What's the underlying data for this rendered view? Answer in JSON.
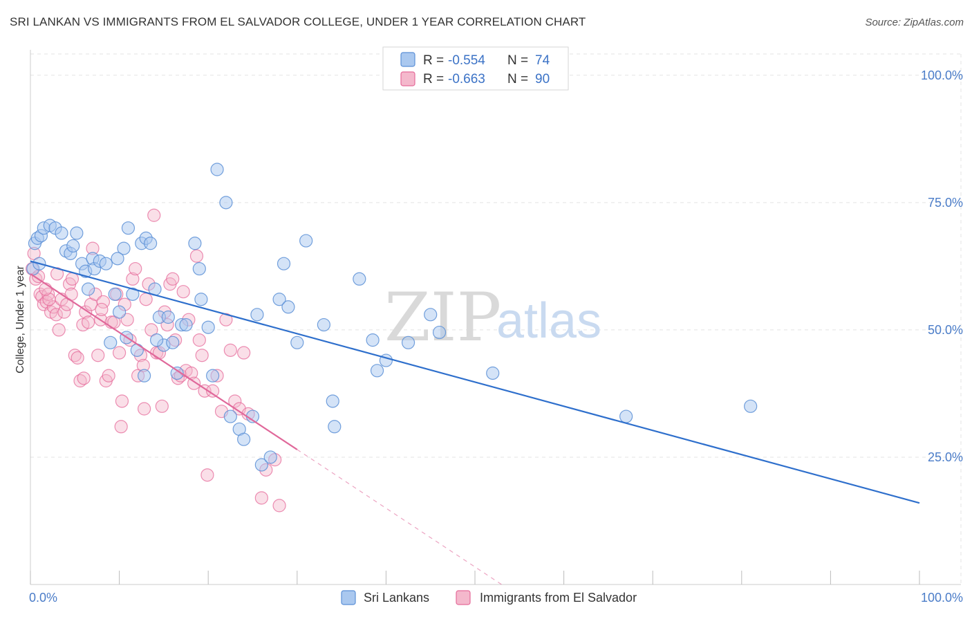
{
  "title": "SRI LANKAN VS IMMIGRANTS FROM EL SALVADOR COLLEGE, UNDER 1 YEAR CORRELATION CHART",
  "source": "Source: ZipAtlas.com",
  "watermark": {
    "zip": "ZIP",
    "atlas": "atlas"
  },
  "colors": {
    "blue": "#5b8fd6",
    "blue_fill": "#aac8ef",
    "pink": "#e56a99",
    "pink_fill": "#f4b8cc",
    "blue_line": "#2e6fcc",
    "pink_line": "#e0689a",
    "tick": "#4a7cc8",
    "grid": "#e3e3e3"
  },
  "legend": {
    "r_label": "R =",
    "n_label": "N =",
    "entries": [
      {
        "r": "-0.554",
        "n": "74"
      },
      {
        "r": "-0.663",
        "n": "90"
      }
    ]
  },
  "chart_data": {
    "type": "scatter",
    "title": "SRI LANKAN VS IMMIGRANTS FROM EL SALVADOR COLLEGE, UNDER 1 YEAR CORRELATION CHART",
    "xlabel": "",
    "ylabel": "College, Under 1 year",
    "xlim": [
      0,
      100
    ],
    "ylim": [
      0,
      105
    ],
    "x_tick_labels": [
      "0.0%",
      "100.0%"
    ],
    "y_ticks": [
      25,
      50,
      75,
      100
    ],
    "y_tick_labels": [
      "25.0%",
      "50.0%",
      "75.0%",
      "100.0%"
    ],
    "grid": true,
    "legend_position": "top-center",
    "series": [
      {
        "name": "Sri Lankans",
        "color": "#5b8fd6",
        "r": -0.554,
        "n": 74,
        "trend": {
          "x0": 0,
          "y0": 63.5,
          "x1": 100,
          "y1": 16.0
        },
        "points": [
          [
            0.3,
            62
          ],
          [
            0.5,
            67
          ],
          [
            0.8,
            68
          ],
          [
            1.2,
            68.5
          ],
          [
            1.5,
            70
          ],
          [
            2.2,
            70.5
          ],
          [
            2.8,
            70
          ],
          [
            3.5,
            69
          ],
          [
            4.0,
            65.5
          ],
          [
            4.5,
            65
          ],
          [
            4.8,
            66.5
          ],
          [
            5.2,
            69
          ],
          [
            5.8,
            63
          ],
          [
            6.2,
            61.5
          ],
          [
            6.5,
            58
          ],
          [
            7.0,
            64
          ],
          [
            7.2,
            62
          ],
          [
            7.8,
            63.5
          ],
          [
            8.5,
            63
          ],
          [
            9.0,
            47.5
          ],
          [
            9.5,
            57
          ],
          [
            10.0,
            53.5
          ],
          [
            10.5,
            66
          ],
          [
            10.8,
            48.5
          ],
          [
            11.0,
            70
          ],
          [
            11.5,
            57
          ],
          [
            12.0,
            46
          ],
          [
            12.5,
            67
          ],
          [
            12.8,
            41
          ],
          [
            13.0,
            68
          ],
          [
            13.5,
            67
          ],
          [
            14.0,
            58
          ],
          [
            14.5,
            52.5
          ],
          [
            15.0,
            47
          ],
          [
            15.5,
            52.5
          ],
          [
            16.0,
            47.5
          ],
          [
            16.5,
            41.5
          ],
          [
            17.0,
            51
          ],
          [
            17.5,
            51
          ],
          [
            18.5,
            67
          ],
          [
            19.0,
            62
          ],
          [
            19.2,
            56
          ],
          [
            20.0,
            50.5
          ],
          [
            20.5,
            41
          ],
          [
            21.0,
            81.5
          ],
          [
            22.0,
            75
          ],
          [
            22.5,
            33
          ],
          [
            23.5,
            30.5
          ],
          [
            24.0,
            28.5
          ],
          [
            25.0,
            33
          ],
          [
            25.5,
            53
          ],
          [
            26.0,
            23.5
          ],
          [
            27.0,
            25
          ],
          [
            28.0,
            56
          ],
          [
            28.5,
            63
          ],
          [
            29.0,
            54.5
          ],
          [
            30.0,
            47.5
          ],
          [
            31.0,
            67.5
          ],
          [
            33.0,
            51
          ],
          [
            34.0,
            36
          ],
          [
            34.2,
            31
          ],
          [
            37.0,
            60
          ],
          [
            38.5,
            48
          ],
          [
            39.0,
            42
          ],
          [
            40.0,
            44
          ],
          [
            42.5,
            47.5
          ],
          [
            45.0,
            53
          ],
          [
            46.0,
            49.5
          ],
          [
            52.0,
            41.5
          ],
          [
            67.0,
            33
          ],
          [
            81.0,
            35
          ],
          [
            14.2,
            48
          ],
          [
            9.8,
            64
          ],
          [
            1.0,
            63
          ]
        ]
      },
      {
        "name": "Immigrants from El Salvador",
        "color": "#e56a99",
        "r": -0.663,
        "n": 90,
        "trend": {
          "x0": 0,
          "y0": 61.0,
          "x1": 30.0,
          "y1": 26.5
        },
        "trend_extension": {
          "x0": 30.0,
          "y0": 26.5,
          "x1": 53.0,
          "y1": 0.0
        },
        "points": [
          [
            0.2,
            62
          ],
          [
            0.4,
            65
          ],
          [
            0.6,
            60
          ],
          [
            0.9,
            60.5
          ],
          [
            1.1,
            57
          ],
          [
            1.3,
            56.5
          ],
          [
            1.5,
            55
          ],
          [
            1.8,
            55.5
          ],
          [
            2.0,
            57
          ],
          [
            2.3,
            53.5
          ],
          [
            2.6,
            54.5
          ],
          [
            2.9,
            53
          ],
          [
            3.2,
            50
          ],
          [
            3.5,
            56
          ],
          [
            3.8,
            53.5
          ],
          [
            4.1,
            55
          ],
          [
            4.4,
            59
          ],
          [
            4.7,
            60
          ],
          [
            5.0,
            45
          ],
          [
            5.3,
            44.5
          ],
          [
            5.6,
            40
          ],
          [
            5.9,
            51
          ],
          [
            6.2,
            53.5
          ],
          [
            6.5,
            51.5
          ],
          [
            6.8,
            55
          ],
          [
            7.0,
            66
          ],
          [
            7.3,
            57
          ],
          [
            7.6,
            45
          ],
          [
            7.9,
            52
          ],
          [
            8.2,
            55.5
          ],
          [
            8.5,
            40
          ],
          [
            8.8,
            41
          ],
          [
            9.1,
            51.5
          ],
          [
            9.4,
            51.5
          ],
          [
            9.7,
            57
          ],
          [
            10.0,
            45.5
          ],
          [
            10.3,
            36
          ],
          [
            10.6,
            55
          ],
          [
            10.9,
            52
          ],
          [
            11.2,
            48
          ],
          [
            11.5,
            60
          ],
          [
            11.8,
            62
          ],
          [
            12.1,
            41
          ],
          [
            12.4,
            45
          ],
          [
            12.7,
            43
          ],
          [
            13.0,
            56
          ],
          [
            13.3,
            59
          ],
          [
            13.6,
            50
          ],
          [
            13.9,
            72.5
          ],
          [
            14.2,
            45.5
          ],
          [
            14.5,
            45.5
          ],
          [
            14.8,
            35
          ],
          [
            15.1,
            53.5
          ],
          [
            15.4,
            51
          ],
          [
            15.7,
            59
          ],
          [
            16.0,
            60
          ],
          [
            16.3,
            48
          ],
          [
            16.6,
            40.5
          ],
          [
            16.9,
            41
          ],
          [
            17.2,
            57.5
          ],
          [
            17.5,
            42
          ],
          [
            17.8,
            52
          ],
          [
            18.1,
            41.5
          ],
          [
            18.4,
            39.5
          ],
          [
            18.7,
            64.5
          ],
          [
            19.0,
            48
          ],
          [
            19.3,
            45
          ],
          [
            19.6,
            38
          ],
          [
            19.9,
            21.5
          ],
          [
            20.5,
            38
          ],
          [
            21.0,
            41
          ],
          [
            21.5,
            34
          ],
          [
            22.0,
            52
          ],
          [
            22.5,
            46
          ],
          [
            23.0,
            36
          ],
          [
            23.5,
            34.5
          ],
          [
            24.0,
            45.5
          ],
          [
            24.5,
            33.5
          ],
          [
            26.0,
            17
          ],
          [
            26.5,
            22.5
          ],
          [
            27.5,
            24.5
          ],
          [
            28.0,
            15.5
          ],
          [
            10.2,
            31
          ],
          [
            12.8,
            34.5
          ],
          [
            3.0,
            61
          ],
          [
            4.6,
            57
          ],
          [
            2.1,
            56
          ],
          [
            6.0,
            40.5
          ],
          [
            8.0,
            54
          ],
          [
            1.7,
            58
          ]
        ]
      }
    ]
  },
  "bottom_legend": [
    "Sri Lankans",
    "Immigrants from El Salvador"
  ]
}
